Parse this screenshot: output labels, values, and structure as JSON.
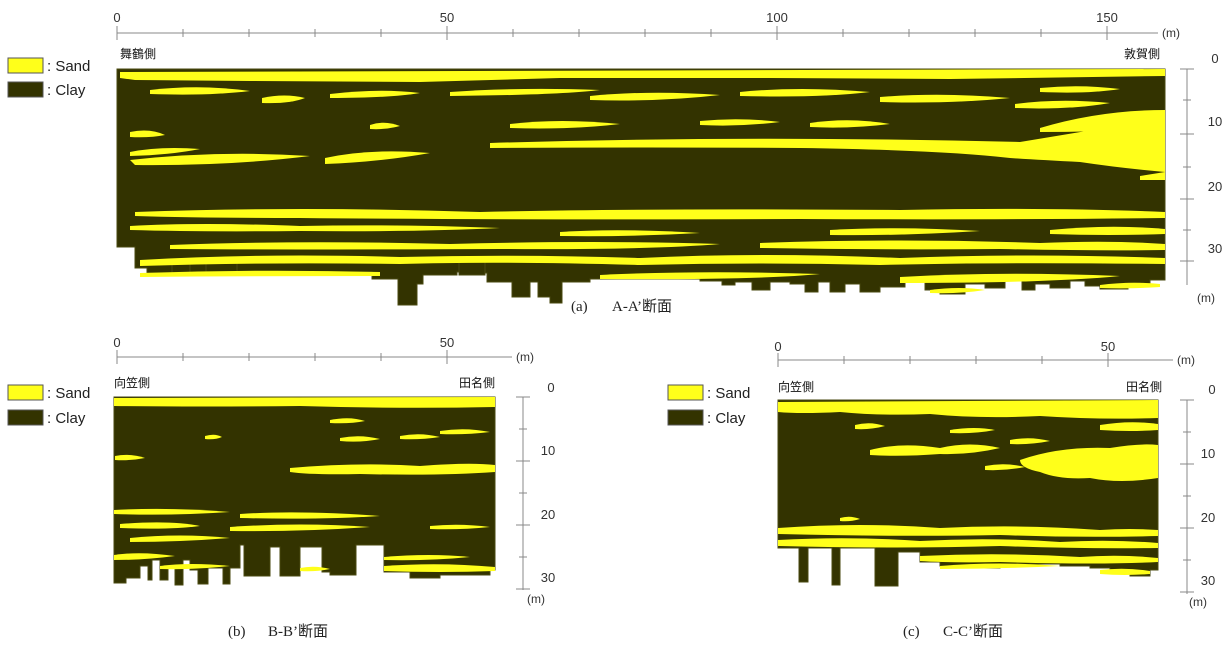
{
  "legend": {
    "sand_label": ": Sand",
    "clay_label": ": Clay"
  },
  "colors": {
    "sand": "#ffff1a",
    "clay": "#333300",
    "clay_edge": "#4a4a10",
    "axis": "#888888"
  },
  "units": {
    "horizontal": "(m)",
    "depth": "(m)"
  },
  "section_a": {
    "caption_id": "(a)",
    "caption_title": "A-A’断面",
    "left_side": "舞鶴側",
    "right_side": "敦賀側",
    "x_labels": [
      "0",
      "50",
      "100",
      "150"
    ],
    "depth_labels": [
      "0",
      "10",
      "20",
      "30"
    ]
  },
  "section_b": {
    "caption_id": "(b)",
    "caption_title": "B-B’断面",
    "left_side": "向笠側",
    "right_side": "田名側",
    "x_labels": [
      "0",
      "50"
    ],
    "depth_labels": [
      "0",
      "10",
      "20",
      "30"
    ]
  },
  "section_c": {
    "caption_id": "(c)",
    "caption_title": "C-C’断面",
    "left_side": "向笠側",
    "right_side": "田名側",
    "x_labels": [
      "0",
      "50"
    ],
    "depth_labels": [
      "0",
      "10",
      "20",
      "30"
    ]
  }
}
